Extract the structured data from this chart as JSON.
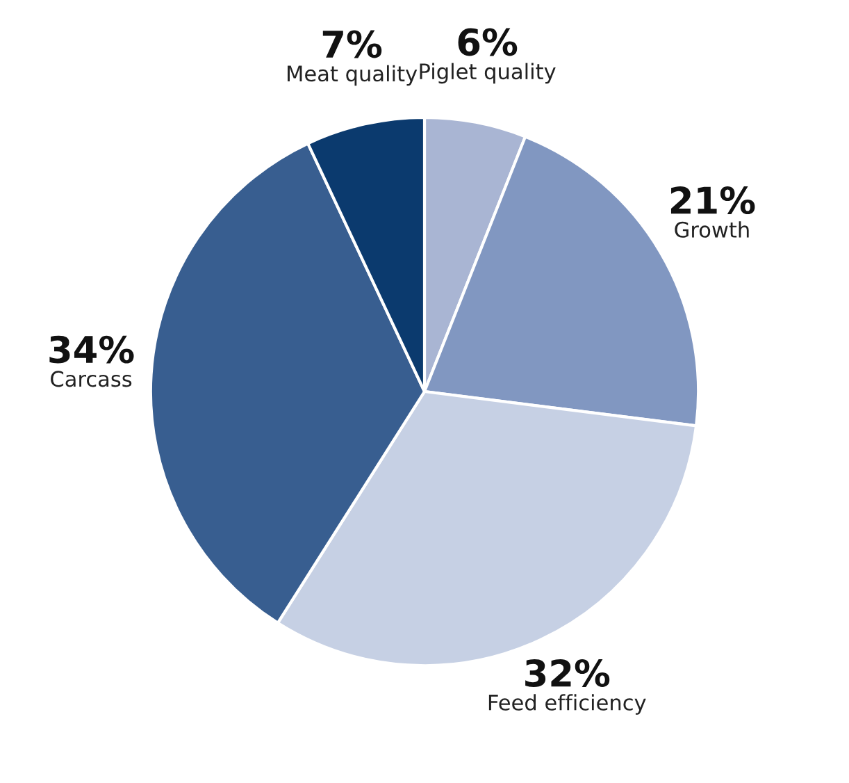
{
  "chart_data": {
    "type": "pie",
    "categories": [
      "Piglet quality",
      "Growth",
      "Feed efficiency",
      "Carcass",
      "Meat quality"
    ],
    "values": [
      6,
      21,
      32,
      34,
      7
    ],
    "value_labels": [
      "6%",
      "21%",
      "32%",
      "34%",
      "7%"
    ],
    "colors": [
      "#a9b5d3",
      "#8197c1",
      "#c6d0e4",
      "#385e90",
      "#0b3a6e"
    ]
  }
}
